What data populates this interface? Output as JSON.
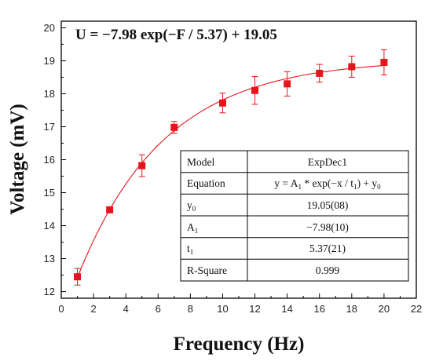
{
  "chart_data": {
    "type": "scatter",
    "title": "U = −7.98 exp(−F / 5.37) + 19.05",
    "xlabel": "Frequency (Hz)",
    "ylabel": "Voltage (mV)",
    "xlim": [
      0,
      22
    ],
    "ylim": [
      11.8,
      20.2
    ],
    "xticks": [
      "0",
      "2",
      "4",
      "6",
      "8",
      "10",
      "12",
      "14",
      "16",
      "18",
      "20",
      "22"
    ],
    "yticks": [
      "12",
      "13",
      "14",
      "15",
      "16",
      "17",
      "18",
      "19",
      "20"
    ],
    "grid": false,
    "marker_color": "#e8141b",
    "series": [
      {
        "points": [
          {
            "x": 1,
            "y": 12.45,
            "err": 0.25
          },
          {
            "x": 3,
            "y": 14.48,
            "err": 0.05
          },
          {
            "x": 5,
            "y": 15.82,
            "err": 0.33
          },
          {
            "x": 7,
            "y": 16.98,
            "err": 0.18
          },
          {
            "x": 10,
            "y": 17.72,
            "err": 0.3
          },
          {
            "x": 12,
            "y": 18.1,
            "err": 0.42
          },
          {
            "x": 14,
            "y": 18.3,
            "err": 0.37
          },
          {
            "x": 16,
            "y": 18.62,
            "err": 0.27
          },
          {
            "x": 18,
            "y": 18.82,
            "err": 0.32
          },
          {
            "x": 20,
            "y": 18.95,
            "err": 0.38
          }
        ]
      }
    ],
    "fit": {
      "A1": -7.98,
      "t1": 5.37,
      "y0": 19.05,
      "x_from": 1,
      "x_to": 20
    },
    "table": {
      "rows": [
        {
          "label": "Model",
          "value": "ExpDec1"
        },
        {
          "label": "Equation",
          "value": "y = A1 * exp(−x / t1) + y0"
        },
        {
          "label": "y0",
          "value": "19.05(08)"
        },
        {
          "label": "A1",
          "value": "−7.98(10)"
        },
        {
          "label": "t1",
          "value": "5.37(21)"
        },
        {
          "label": "R-Square",
          "value": "0.999"
        }
      ]
    }
  }
}
